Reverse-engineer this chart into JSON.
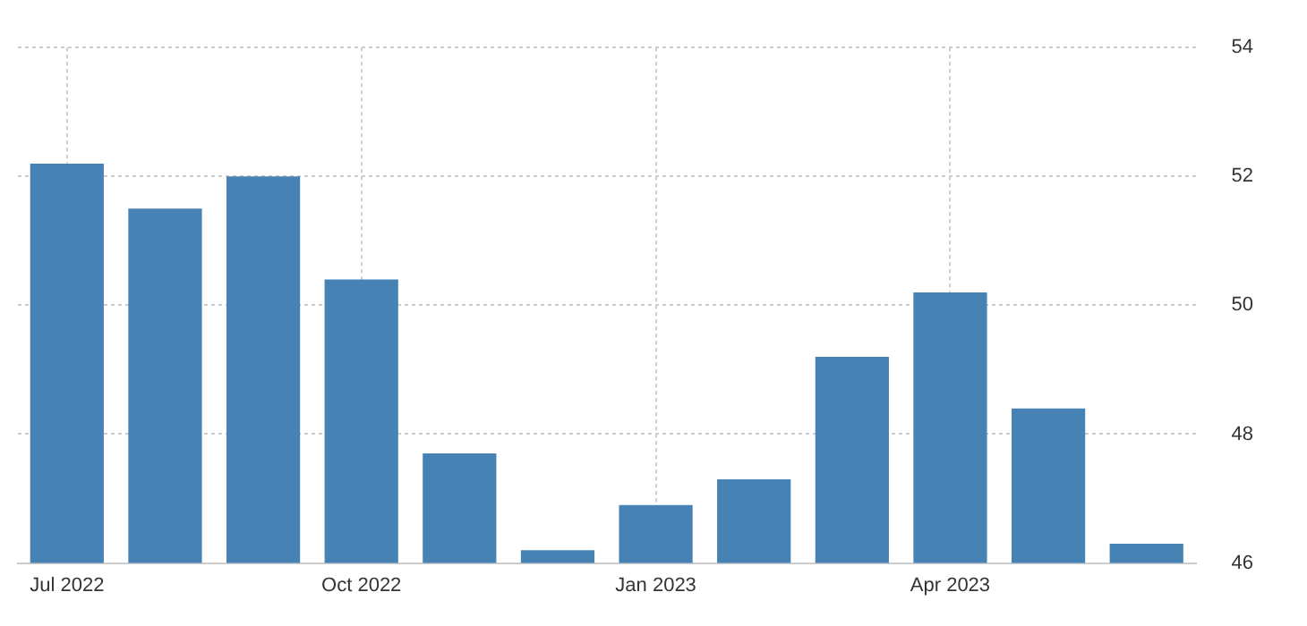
{
  "chart_data": {
    "type": "bar",
    "categories": [
      "Jul 2022",
      null,
      null,
      "Oct 2022",
      null,
      null,
      "Jan 2023",
      null,
      null,
      "Apr 2023",
      null,
      null
    ],
    "values": [
      52.2,
      51.5,
      52.0,
      50.4,
      47.7,
      46.2,
      46.9,
      47.3,
      49.2,
      50.2,
      48.4,
      46.3
    ],
    "color": "#4682b4",
    "ylim": [
      46,
      54
    ],
    "yticks": [
      46,
      48,
      50,
      52,
      54
    ],
    "grid": true,
    "legend": false
  }
}
